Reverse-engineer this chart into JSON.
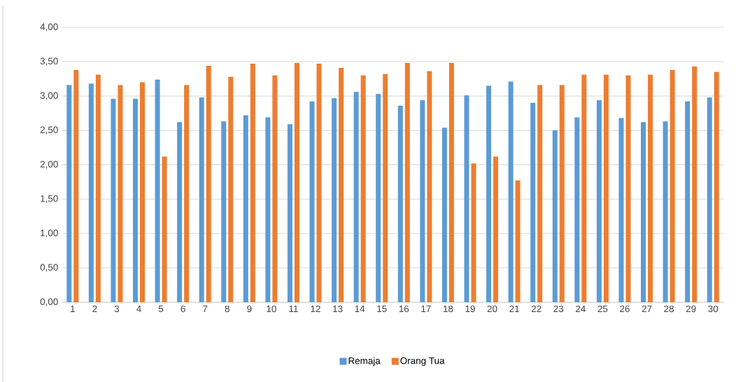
{
  "chart_data": {
    "type": "bar",
    "categories": [
      "1",
      "2",
      "3",
      "4",
      "5",
      "6",
      "7",
      "8",
      "9",
      "10",
      "11",
      "12",
      "13",
      "14",
      "15",
      "16",
      "17",
      "18",
      "19",
      "20",
      "21",
      "22",
      "23",
      "24",
      "25",
      "26",
      "27",
      "28",
      "29",
      "30"
    ],
    "series": [
      {
        "name": "Remaja",
        "color": "#5b9bd5",
        "values": [
          3.16,
          3.18,
          2.96,
          2.96,
          3.24,
          2.62,
          2.98,
          2.63,
          2.72,
          2.69,
          2.59,
          2.92,
          2.97,
          3.06,
          3.03,
          2.86,
          2.94,
          2.54,
          3.01,
          3.15,
          3.21,
          2.9,
          2.5,
          2.69,
          2.94,
          2.68,
          2.62,
          2.63,
          2.92,
          2.98
        ]
      },
      {
        "name": "Orang Tua",
        "color": "#ed7d31",
        "values": [
          3.38,
          3.31,
          3.16,
          3.2,
          2.12,
          3.16,
          3.44,
          3.28,
          3.47,
          3.3,
          3.48,
          3.47,
          3.41,
          3.3,
          3.32,
          3.48,
          3.36,
          3.48,
          2.02,
          2.12,
          1.77,
          3.16,
          3.16,
          3.31,
          3.31,
          3.3,
          3.31,
          3.38,
          3.43,
          3.35
        ]
      }
    ],
    "ylim": [
      0,
      4
    ],
    "yticks": [
      {
        "value": 0,
        "label": "0,00"
      },
      {
        "value": 0.5,
        "label": "0,50"
      },
      {
        "value": 1,
        "label": "1,00"
      },
      {
        "value": 1.5,
        "label": "1,50"
      },
      {
        "value": 2,
        "label": "2,00"
      },
      {
        "value": 2.5,
        "label": "2,50"
      },
      {
        "value": 3,
        "label": "3,00"
      },
      {
        "value": 3.5,
        "label": "3,50"
      },
      {
        "value": 4,
        "label": "4,00"
      }
    ],
    "grid": "y",
    "legend": "bottom"
  }
}
